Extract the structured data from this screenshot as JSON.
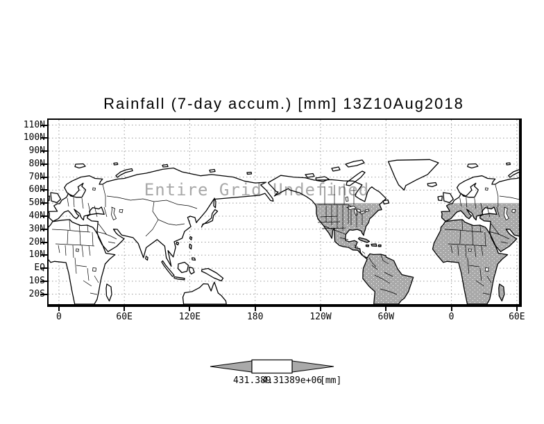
{
  "title": "Rainfall (7-day accum.) [mm] 13Z10Aug2018",
  "map": {
    "message": "Entire Grid Undefined"
  },
  "axes": {
    "y": {
      "labels": [
        "110N",
        "100N",
        "90N",
        "80N",
        "70N",
        "60N",
        "50N",
        "40N",
        "30N",
        "20N",
        "10N",
        "EQ",
        "10S",
        "20S"
      ]
    },
    "x": {
      "labels": [
        "0",
        "60E",
        "120E",
        "180",
        "120W",
        "60W",
        "0",
        "60E"
      ]
    }
  },
  "colorbar": {
    "min_label": "431.389",
    "max_label": "4.31389e+06",
    "unit": "[mm]"
  },
  "colors": {
    "land_fill": "#ffffff",
    "undefined_region_fill": "#a9a9a9",
    "coastline": "#000000",
    "gridline": "#999999",
    "message_text": "#a8a8a8",
    "arrow_fill": "#a9a9a9"
  },
  "chart_data": {
    "type": "map",
    "projection": "lat-lon (cylindrical equidistant)",
    "title": "Rainfall (7-day accum.) [mm] 13Z10Aug2018",
    "variable": "Rainfall (7-day accum.)",
    "units": "mm",
    "valid_time": "13Z10Aug2018",
    "status_message": "Entire Grid Undefined",
    "lat_ticks": [
      "110N",
      "100N",
      "90N",
      "80N",
      "70N",
      "60N",
      "50N",
      "40N",
      "30N",
      "20N",
      "10N",
      "EQ",
      "10S",
      "20S"
    ],
    "lon_ticks": [
      "0",
      "60E",
      "120E",
      "180",
      "120W",
      "60W",
      "0",
      "60E"
    ],
    "grid": "dotted gray, every 10 deg latitude and 60 deg longitude",
    "shaded_region": "land areas shaded gray between ~50N and the bottom of the map, from roughly 130W eastward through 0 to 60E (Americas south of 50N, northern South America, Africa, southern Europe, Middle East)",
    "colorbar": {
      "shape": "left arrow | white box | right arrow",
      "edge_labels": [
        "431.389",
        "4.31389e+06"
      ],
      "unit": "[mm]"
    }
  }
}
